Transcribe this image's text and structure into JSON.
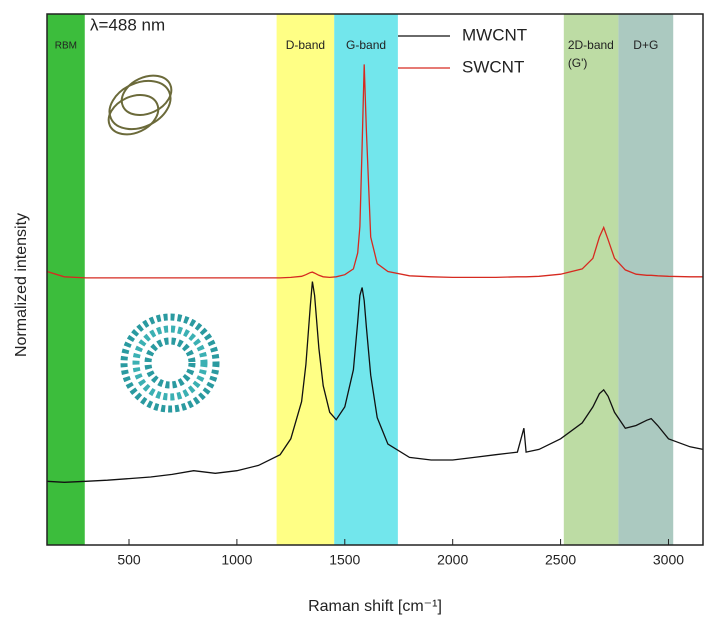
{
  "chart_data": {
    "type": "line",
    "annotation": "λ=488 nm",
    "x_label": "Raman shift [cm⁻¹]",
    "y_label": "Normalized intensity",
    "xlim": [
      120,
      3160
    ],
    "xticks": [
      500,
      1000,
      1500,
      2000,
      2500,
      3000
    ],
    "ylim": [
      0,
      1
    ],
    "legend": "top-center",
    "bands": [
      {
        "labels": [
          "RBM"
        ],
        "range": [
          120,
          295
        ],
        "color": "#3cbd3c"
      },
      {
        "labels": [
          "D-band"
        ],
        "range": [
          1184,
          1451
        ],
        "color": "#ffff85"
      },
      {
        "labels": [
          "G-band"
        ],
        "range": [
          1451,
          1746
        ],
        "color": "#72e6ec"
      },
      {
        "labels": [
          "2D-band",
          "(G')"
        ],
        "range": [
          2515,
          2768
        ],
        "color": "#bddca4"
      },
      {
        "labels": [
          "D+G"
        ],
        "range": [
          2768,
          3022
        ],
        "color": "#abc9c0"
      }
    ],
    "x": [
      120,
      200,
      300,
      400,
      500,
      600,
      700,
      800,
      900,
      1000,
      1100,
      1200,
      1250,
      1300,
      1320,
      1340,
      1350,
      1360,
      1380,
      1400,
      1430,
      1460,
      1500,
      1540,
      1560,
      1570,
      1580,
      1590,
      1600,
      1620,
      1650,
      1700,
      1800,
      1900,
      2000,
      2100,
      2200,
      2300,
      2330,
      2340,
      2400,
      2500,
      2600,
      2650,
      2680,
      2700,
      2720,
      2750,
      2800,
      2850,
      2900,
      2920,
      2950,
      3000,
      3100,
      3160
    ],
    "series": [
      {
        "name": "MWCNT",
        "color": "#111111",
        "values": [
          0.12,
          0.118,
          0.12,
          0.122,
          0.125,
          0.128,
          0.133,
          0.14,
          0.135,
          0.14,
          0.15,
          0.17,
          0.2,
          0.27,
          0.34,
          0.45,
          0.496,
          0.47,
          0.37,
          0.3,
          0.25,
          0.236,
          0.26,
          0.33,
          0.42,
          0.47,
          0.485,
          0.46,
          0.41,
          0.32,
          0.24,
          0.19,
          0.165,
          0.16,
          0.16,
          0.165,
          0.17,
          0.175,
          0.22,
          0.175,
          0.18,
          0.2,
          0.23,
          0.26,
          0.285,
          0.292,
          0.28,
          0.25,
          0.22,
          0.225,
          0.235,
          0.238,
          0.225,
          0.2,
          0.185,
          0.18
        ]
      },
      {
        "name": "SWCNT",
        "color": "#d62a20",
        "values": [
          0.515,
          0.505,
          0.503,
          0.503,
          0.503,
          0.503,
          0.503,
          0.503,
          0.503,
          0.503,
          0.503,
          0.503,
          0.504,
          0.506,
          0.509,
          0.513,
          0.514,
          0.512,
          0.508,
          0.505,
          0.504,
          0.505,
          0.509,
          0.52,
          0.55,
          0.6,
          0.75,
          0.905,
          0.78,
          0.58,
          0.53,
          0.515,
          0.507,
          0.505,
          0.504,
          0.504,
          0.504,
          0.505,
          0.505,
          0.505,
          0.506,
          0.51,
          0.52,
          0.54,
          0.58,
          0.598,
          0.575,
          0.54,
          0.518,
          0.51,
          0.508,
          0.508,
          0.507,
          0.506,
          0.505,
          0.505
        ]
      }
    ]
  }
}
